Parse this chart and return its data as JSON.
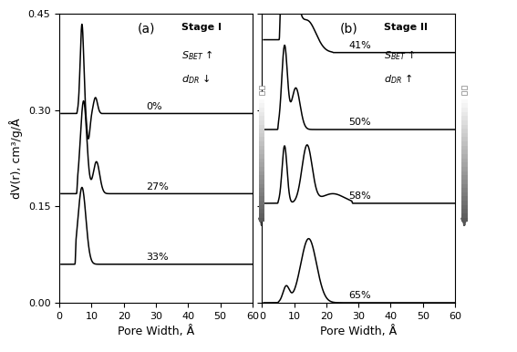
{
  "panel_a_label": "(a)",
  "panel_b_label": "(b)",
  "xlabel": "Pore Width, Å",
  "ylabel": "dV(r), cm³/g/Å",
  "xlim": [
    0,
    60
  ],
  "ylim": [
    0.0,
    0.45
  ],
  "yticks": [
    0.0,
    0.15,
    0.3,
    0.45
  ],
  "xticks": [
    0,
    10,
    20,
    30,
    40,
    50,
    60
  ],
  "stage_a_text": "Stage I",
  "stage_b_text": "Stage II",
  "labels_a": [
    "0%",
    "27%",
    "33%"
  ],
  "labels_b": [
    "41%",
    "50%",
    "58%",
    "65%"
  ],
  "offsets_a": [
    0.2,
    0.1,
    0.0
  ],
  "offsets_b": [
    0.3,
    0.2,
    0.1,
    0.0
  ],
  "curve_color": "#000000",
  "background": "#ffffff"
}
